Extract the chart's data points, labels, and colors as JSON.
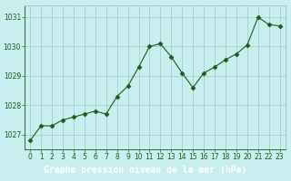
{
  "x": [
    0,
    1,
    2,
    3,
    4,
    5,
    6,
    7,
    8,
    9,
    10,
    11,
    12,
    13,
    14,
    15,
    16,
    17,
    18,
    19,
    20,
    21,
    22,
    23
  ],
  "y": [
    1026.8,
    1027.3,
    1027.3,
    1027.5,
    1027.6,
    1027.7,
    1027.8,
    1027.7,
    1028.3,
    1028.65,
    1029.3,
    1030.0,
    1030.1,
    1029.65,
    1029.1,
    1028.6,
    1029.1,
    1029.3,
    1029.55,
    1029.75,
    1030.05,
    1031.0,
    1030.75,
    1030.7
  ],
  "line_color": "#1a5c1a",
  "marker": "D",
  "marker_size": 2.5,
  "bg_color": "#c8eef0",
  "grid_color": "#a0c8c8",
  "border_color": "#2a6a2a",
  "xlabel": "Graphe pression niveau de la mer (hPa)",
  "xlabel_color": "#ffffff",
  "xlabel_bg_color": "#2a6a2a",
  "xlabel_fontsize": 7,
  "yticks": [
    1027,
    1028,
    1029,
    1030,
    1031
  ],
  "xticks": [
    0,
    1,
    2,
    3,
    4,
    5,
    6,
    7,
    8,
    9,
    10,
    11,
    12,
    13,
    14,
    15,
    16,
    17,
    18,
    19,
    20,
    21,
    22,
    23
  ],
  "ylim": [
    1026.5,
    1031.4
  ],
  "xlim": [
    -0.5,
    23.5
  ],
  "tick_fontsize": 5.5,
  "tick_color": "#1a5c1a",
  "figwidth": 3.2,
  "figheight": 2.0,
  "dpi": 100
}
